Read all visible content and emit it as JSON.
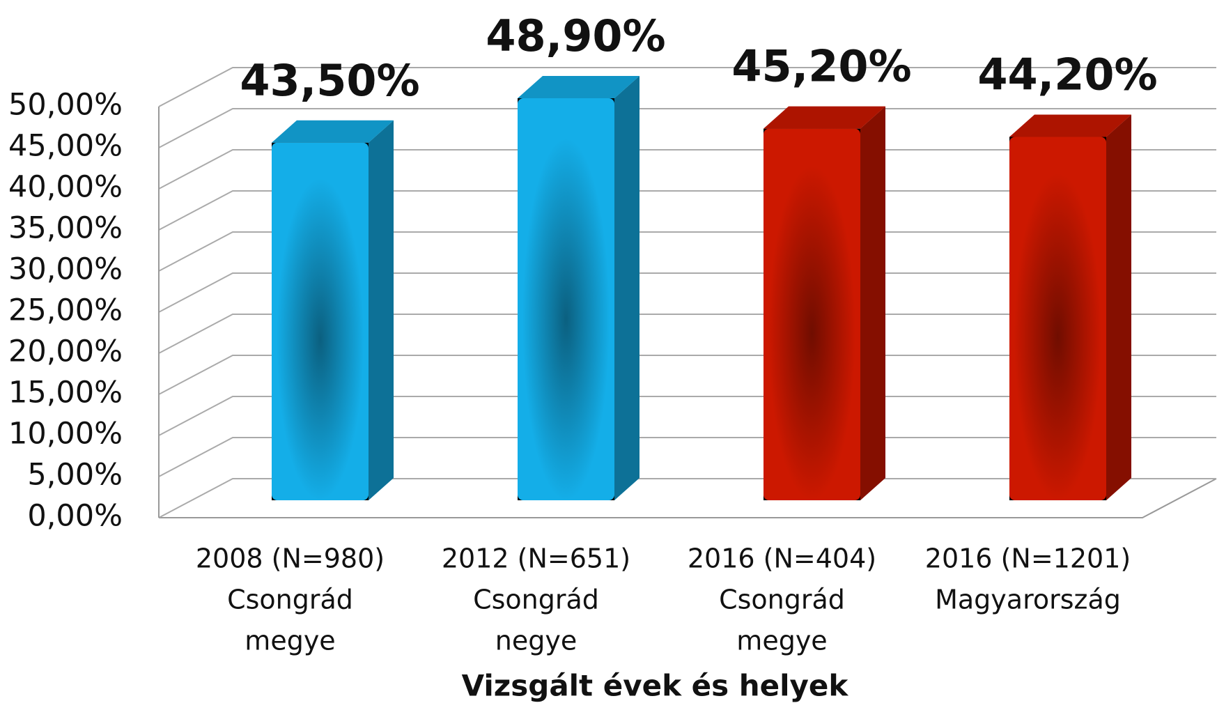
{
  "chart_data": {
    "type": "bar3d",
    "categories": [
      [
        "2008 (N=980)",
        "Csongrád",
        "megye"
      ],
      [
        "2012 (N=651)",
        "Csongrád",
        "negye"
      ],
      [
        "2016 (N=404)",
        "Csongrád",
        "megye"
      ],
      [
        "2016 (N=1201)",
        "Magyarország"
      ]
    ],
    "values": [
      43.5,
      48.9,
      45.2,
      44.2
    ],
    "value_labels": [
      "43,50%",
      "48,90%",
      "45,20%",
      "44,20%"
    ],
    "colors": [
      "#14aee8",
      "#14aee8",
      "#cc1800",
      "#cc1800"
    ],
    "x_label": "Vizsgált évek és helyek",
    "ylim": [
      0,
      50
    ],
    "yticks": [
      {
        "value": 0,
        "label": "0,00%"
      },
      {
        "value": 5,
        "label": "5,00%"
      },
      {
        "value": 10,
        "label": "10,00%"
      },
      {
        "value": 15,
        "label": "15,00%"
      },
      {
        "value": 20,
        "label": "20,00%"
      },
      {
        "value": 25,
        "label": "25,00%"
      },
      {
        "value": 30,
        "label": "30,00%"
      },
      {
        "value": 35,
        "label": "35,00%"
      },
      {
        "value": 40,
        "label": "40,00%"
      },
      {
        "value": 45,
        "label": "45,00%"
      },
      {
        "value": 50,
        "label": "50,00%"
      }
    ],
    "grid": true
  }
}
